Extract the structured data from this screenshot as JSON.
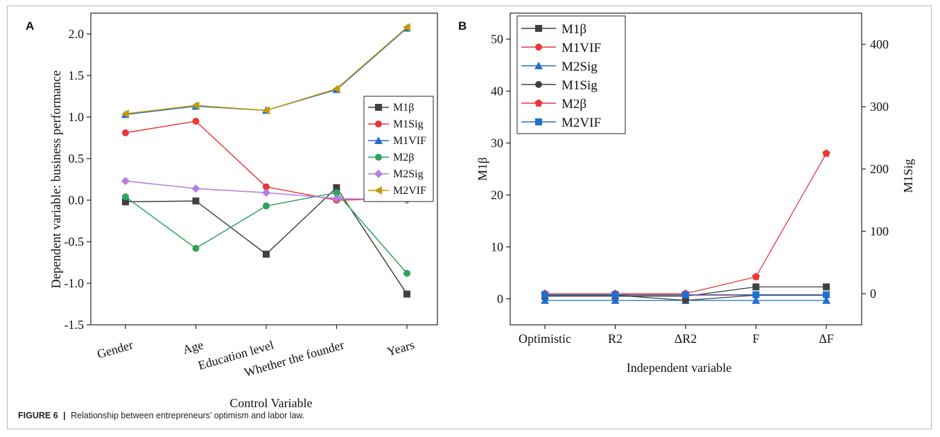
{
  "figure": {
    "caption_label": "FIGURE 6",
    "caption_sep": "|",
    "caption_text": "Relationship between entrepreneurs’ optimism and labor law."
  },
  "chart_data": [
    {
      "panel": "A",
      "type": "line",
      "xlabel": "Control Variable",
      "ylabel": "Dependent variable: business performance",
      "categories": [
        "Gender",
        "Age",
        "Education level",
        "Whether the founder",
        "Years"
      ],
      "ylim": [
        -1.5,
        2.25
      ],
      "yticks": [
        "-1.5",
        "-1.0",
        "-0.5",
        "0.0",
        "0.5",
        "1.0",
        "1.5",
        "2.0"
      ],
      "legend_position": "right",
      "series": [
        {
          "name": "M1β",
          "color": "#404040",
          "marker": "square",
          "values": [
            -0.02,
            -0.01,
            -0.65,
            0.15,
            -1.13
          ]
        },
        {
          "name": "M1Sig",
          "color": "#e8383b",
          "marker": "circle",
          "values": [
            0.81,
            0.95,
            0.16,
            0.0,
            0.02
          ]
        },
        {
          "name": "M1VIF",
          "color": "#1f6fd1",
          "marker": "triangle-up",
          "values": [
            1.03,
            1.13,
            1.08,
            1.33,
            2.07
          ]
        },
        {
          "name": "M2β",
          "color": "#2ca25f",
          "marker": "circle",
          "values": [
            0.04,
            -0.58,
            -0.07,
            0.09,
            -0.88
          ]
        },
        {
          "name": "M2Sig",
          "color": "#b27ce6",
          "marker": "diamond",
          "values": [
            0.23,
            0.14,
            0.09,
            0.02,
            0.0
          ]
        },
        {
          "name": "M2VIF",
          "color": "#c49a00",
          "marker": "triangle-left",
          "values": [
            1.04,
            1.14,
            1.08,
            1.34,
            2.08
          ]
        }
      ]
    },
    {
      "panel": "B",
      "type": "line",
      "xlabel": "Independent variable",
      "ylabel_left": "M1β",
      "ylabel_right": "M1Sig",
      "categories": [
        "Optimistic",
        "R2",
        "ΔR2",
        "F",
        "ΔF"
      ],
      "ylim_left": [
        -5,
        55
      ],
      "yticks_left": [
        "0",
        "10",
        "20",
        "30",
        "40",
        "50"
      ],
      "ylim_right": [
        -50,
        450
      ],
      "yticks_right": [
        "0",
        "100",
        "200",
        "300",
        "400"
      ],
      "legend_position": "top-left",
      "series": [
        {
          "name": "M1β",
          "color": "#404040",
          "marker": "square",
          "axis": "left",
          "values": [
            0.5,
            0.5,
            0.5,
            2.3,
            2.3
          ]
        },
        {
          "name": "M1VIF",
          "color": "#e8383b",
          "marker": "circle",
          "axis": "left",
          "values": [
            0.7,
            0.7,
            0.7,
            0.7,
            0.7
          ]
        },
        {
          "name": "M2Sig",
          "color": "#1f6fd1",
          "marker": "triangle-up",
          "axis": "left",
          "values": [
            -0.3,
            -0.3,
            -0.3,
            -0.3,
            -0.3
          ]
        },
        {
          "name": "M1Sig",
          "color": "#404040",
          "marker": "circle",
          "axis": "left",
          "values": [
            0.7,
            0.7,
            -0.3,
            0.7,
            0.7
          ]
        },
        {
          "name": "M2β",
          "color": "#e8383b",
          "marker": "pentagon",
          "axis": "right",
          "values": [
            0,
            0,
            0,
            27,
            225
          ]
        },
        {
          "name": "M2VIF",
          "color": "#1f6fd1",
          "marker": "square",
          "axis": "left",
          "values": [
            0.8,
            0.8,
            0.8,
            0.8,
            0.8
          ]
        }
      ]
    }
  ]
}
